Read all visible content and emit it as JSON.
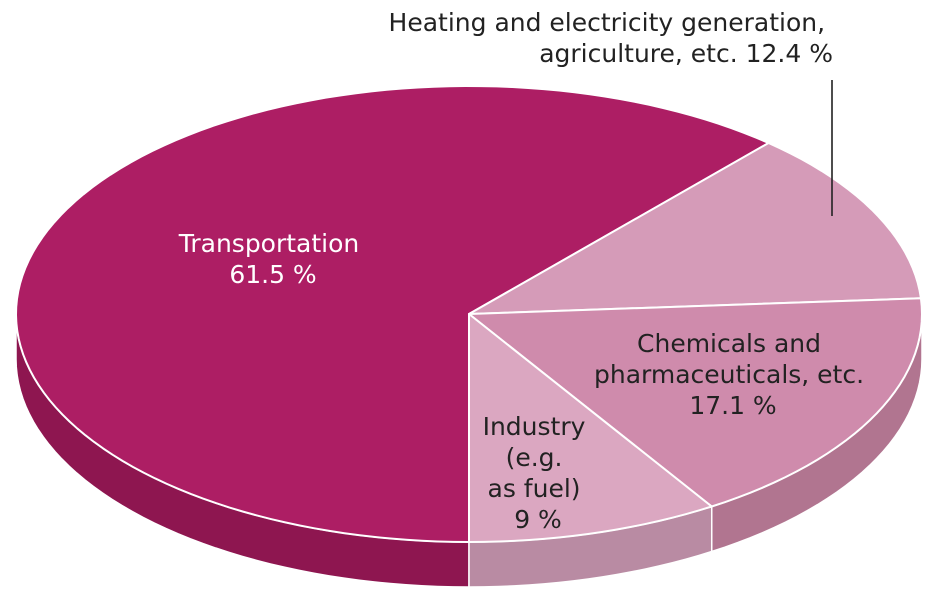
{
  "chart_data": {
    "type": "pie",
    "title": "",
    "slices": [
      {
        "name": "Transportation",
        "value": 61.5,
        "color": "#ad1e64",
        "side_color": "#8e1650",
        "label_lines": [
          "Transportation",
          "61.5 %"
        ]
      },
      {
        "name": "Heating and electricity generation, agriculture, etc.",
        "value": 12.4,
        "color": "#d59bb8",
        "side_color": "#b47b98",
        "label_lines": [
          "Heating and electricity generation,",
          "agriculture, etc. 12.4 %"
        ]
      },
      {
        "name": "Chemicals and pharmaceuticals, etc.",
        "value": 17.1,
        "color": "#cf8bac",
        "side_color": "#b17590",
        "label_lines": [
          "Chemicals and",
          "pharmaceuticals, etc.",
          "17.1 %"
        ]
      },
      {
        "name": "Industry (e.g. as fuel)",
        "value": 9,
        "color": "#dba7c1",
        "side_color": "#b98ba3",
        "label_lines": [
          "Industry",
          "(e.g.",
          "as fuel)",
          "9 %"
        ]
      }
    ],
    "legend": "none",
    "style": "3d-pie"
  }
}
